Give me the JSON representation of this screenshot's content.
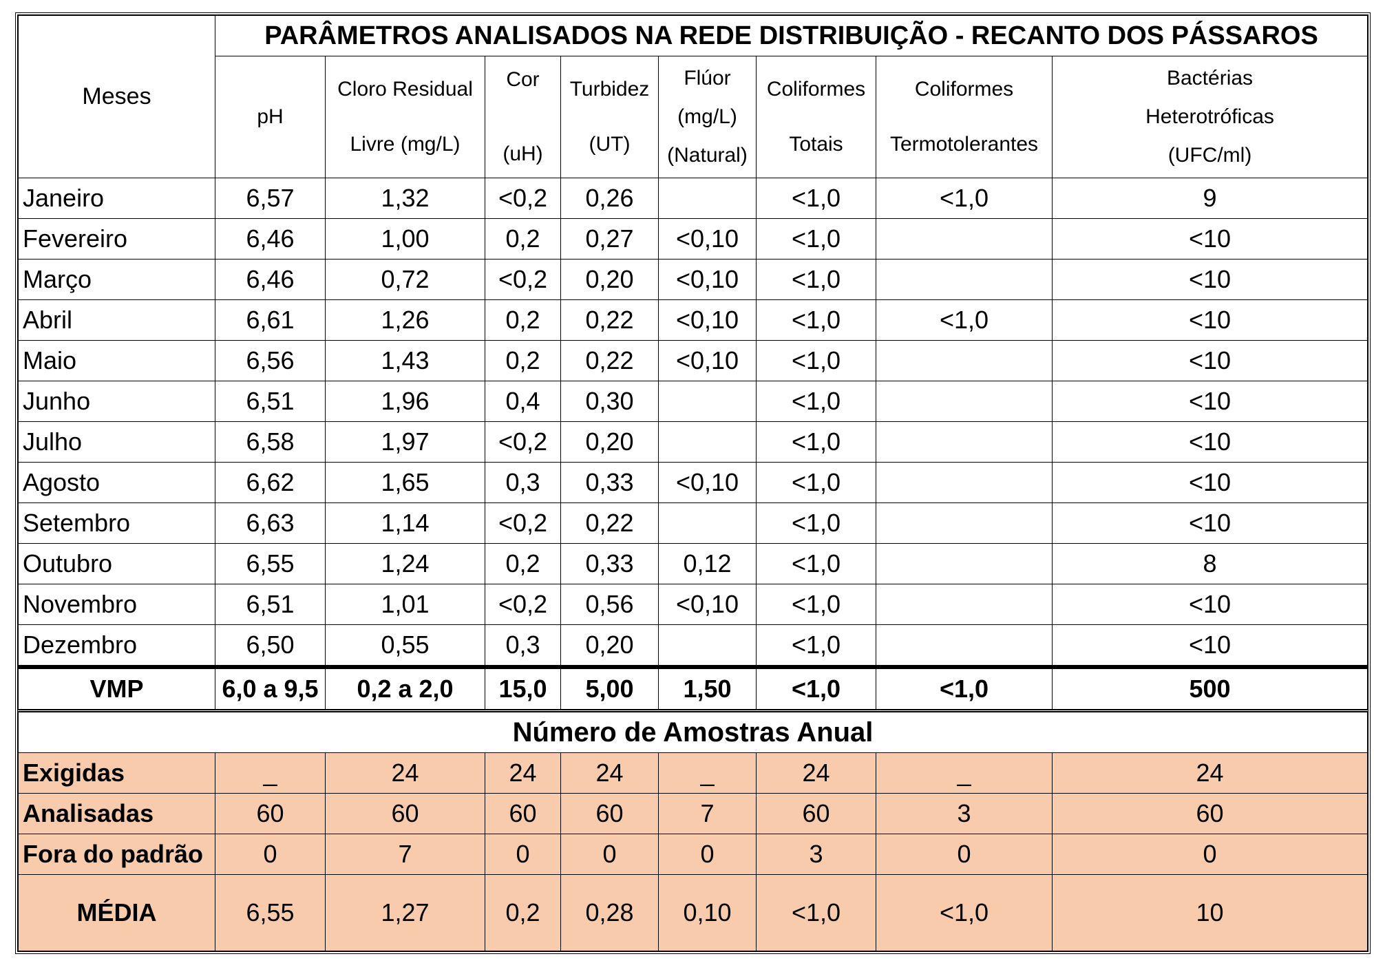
{
  "title": "PARÂMETROS ANALISADOS NA REDE DISTRIBUIÇÃO - RECANTO DOS PÁSSAROS",
  "months_header": "Meses",
  "columns": [
    {
      "lines": [
        "pH"
      ]
    },
    {
      "lines": [
        "Cloro Residual",
        "Livre (mg/L)"
      ]
    },
    {
      "lines": [
        "Cor",
        "(uH)"
      ]
    },
    {
      "lines": [
        "Turbidez",
        "(UT)"
      ]
    },
    {
      "lines": [
        "Flúor",
        "(mg/L)",
        "(Natural)"
      ]
    },
    {
      "lines": [
        "Coliformes",
        "Totais"
      ]
    },
    {
      "lines": [
        "Coliformes",
        "Termotolerantes"
      ]
    },
    {
      "lines": [
        "Bactérias",
        "Heterotróficas",
        "(UFC/ml)"
      ]
    }
  ],
  "rows": [
    {
      "month": "Janeiro",
      "values": [
        "6,57",
        "1,32",
        "<0,2",
        "0,26",
        "",
        "<1,0",
        "<1,0",
        "9"
      ]
    },
    {
      "month": "Fevereiro",
      "values": [
        "6,46",
        "1,00",
        "0,2",
        "0,27",
        "<0,10",
        "<1,0",
        "",
        "<10"
      ]
    },
    {
      "month": "Março",
      "values": [
        "6,46",
        "0,72",
        "<0,2",
        "0,20",
        "<0,10",
        "<1,0",
        "",
        "<10"
      ]
    },
    {
      "month": "Abril",
      "values": [
        "6,61",
        "1,26",
        "0,2",
        "0,22",
        "<0,10",
        "<1,0",
        "<1,0",
        "<10"
      ]
    },
    {
      "month": "Maio",
      "values": [
        "6,56",
        "1,43",
        "0,2",
        "0,22",
        "<0,10",
        "<1,0",
        "",
        "<10"
      ]
    },
    {
      "month": "Junho",
      "values": [
        "6,51",
        "1,96",
        "0,4",
        "0,30",
        "",
        "<1,0",
        "",
        "<10"
      ]
    },
    {
      "month": "Julho",
      "values": [
        "6,58",
        "1,97",
        "<0,2",
        "0,20",
        "",
        "<1,0",
        "",
        "<10"
      ]
    },
    {
      "month": "Agosto",
      "values": [
        "6,62",
        "1,65",
        "0,3",
        "0,33",
        "<0,10",
        "<1,0",
        "",
        "<10"
      ]
    },
    {
      "month": "Setembro",
      "values": [
        "6,63",
        "1,14",
        "<0,2",
        "0,22",
        "",
        "<1,0",
        "",
        "<10"
      ]
    },
    {
      "month": "Outubro",
      "values": [
        "6,55",
        "1,24",
        "0,2",
        "0,33",
        "0,12",
        "<1,0",
        "",
        "8"
      ]
    },
    {
      "month": "Novembro",
      "values": [
        "6,51",
        "1,01",
        "<0,2",
        "0,56",
        "<0,10",
        "<1,0",
        "",
        "<10"
      ]
    },
    {
      "month": "Dezembro",
      "values": [
        "6,50",
        "0,55",
        "0,3",
        "0,20",
        "",
        "<1,0",
        "",
        "<10"
      ]
    }
  ],
  "vmp": {
    "label": "VMP",
    "values": [
      "6,0 a 9,5",
      "0,2 a 2,0",
      "15,0",
      "5,00",
      "1,50",
      "<1,0",
      "<1,0",
      "500"
    ]
  },
  "samples_title": "Número de Amostras Anual",
  "samples": [
    {
      "label": "Exigidas",
      "values": [
        "_",
        "24",
        "24",
        "24",
        "_",
        "24",
        "_",
        "24"
      ]
    },
    {
      "label": "Analisadas",
      "values": [
        "60",
        "60",
        "60",
        "60",
        "7",
        "60",
        "3",
        "60"
      ]
    },
    {
      "label": "Fora do padrão",
      "values": [
        "0",
        "7",
        "0",
        "0",
        "0",
        "3",
        "0",
        "0"
      ]
    }
  ],
  "media": {
    "label": "MÉDIA",
    "values": [
      "6,55",
      "1,27",
      "0,2",
      "0,28",
      "0,10",
      "<1,0",
      "<1,0",
      "10"
    ]
  },
  "colors": {
    "sample_bg": "#f8cbad",
    "border": "#000000"
  }
}
